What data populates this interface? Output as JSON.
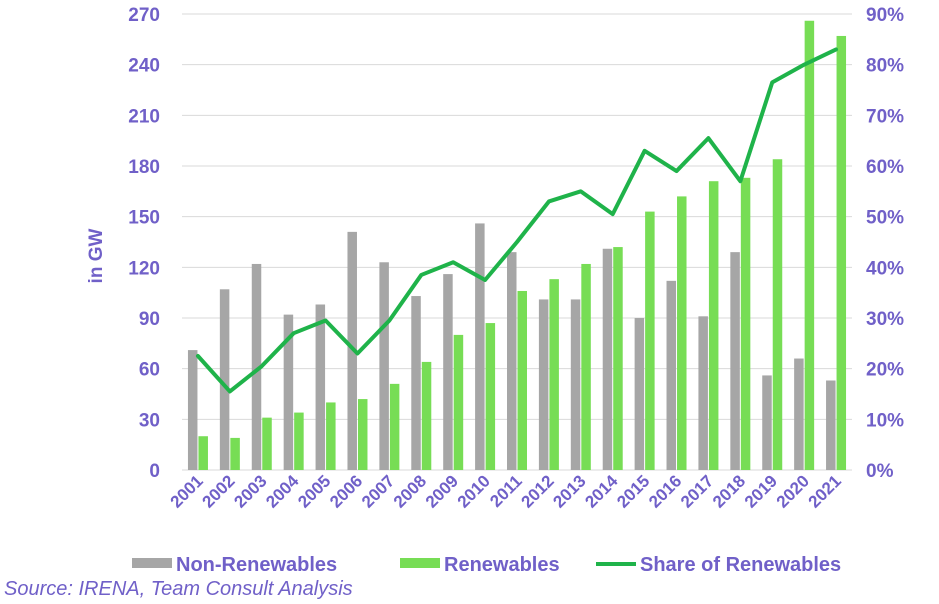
{
  "chart_data": {
    "type": "bar",
    "categories": [
      "2001",
      "2002",
      "2003",
      "2004",
      "2005",
      "2006",
      "2007",
      "2008",
      "2009",
      "2010",
      "2011",
      "2012",
      "2013",
      "2014",
      "2015",
      "2016",
      "2017",
      "2018",
      "2019",
      "2020",
      "2021"
    ],
    "series": [
      {
        "name": "Non-Renewables",
        "type": "bar",
        "axis": "left",
        "color": "#a6a6a6",
        "values": [
          71,
          107,
          122,
          92,
          98,
          141,
          123,
          103,
          116,
          146,
          129,
          101,
          101,
          131,
          90,
          112,
          91,
          129,
          56,
          66,
          53
        ]
      },
      {
        "name": "Renewables",
        "type": "bar",
        "axis": "left",
        "color": "#77dd55",
        "values": [
          20,
          19,
          31,
          34,
          40,
          42,
          51,
          64,
          80,
          87,
          106,
          113,
          122,
          132,
          153,
          162,
          171,
          173,
          184,
          266,
          257
        ]
      },
      {
        "name": "Share of Renewables",
        "type": "line",
        "axis": "right",
        "color": "#1fb34a",
        "values": [
          22.5,
          15.5,
          20.5,
          27,
          29.5,
          23,
          29.5,
          38.5,
          41,
          37.5,
          45,
          53,
          55,
          50.5,
          63,
          59,
          65.5,
          57,
          76.5,
          80,
          83
        ]
      }
    ],
    "ylabel": "in GW",
    "ylim": [
      0,
      270
    ],
    "yticks": [
      "0",
      "30",
      "60",
      "90",
      "120",
      "150",
      "180",
      "210",
      "240",
      "270"
    ],
    "y2lim": [
      0,
      90
    ],
    "y2ticks": [
      "0%",
      "10%",
      "20%",
      "30%",
      "40%",
      "50%",
      "60%",
      "70%",
      "80%",
      "90%"
    ],
    "grid": true,
    "legend_position": "bottom"
  },
  "source": "Source: IRENA, Team Consult Analysis",
  "colors": {
    "text": "#7060c8",
    "grid": "#d9d9d9"
  }
}
